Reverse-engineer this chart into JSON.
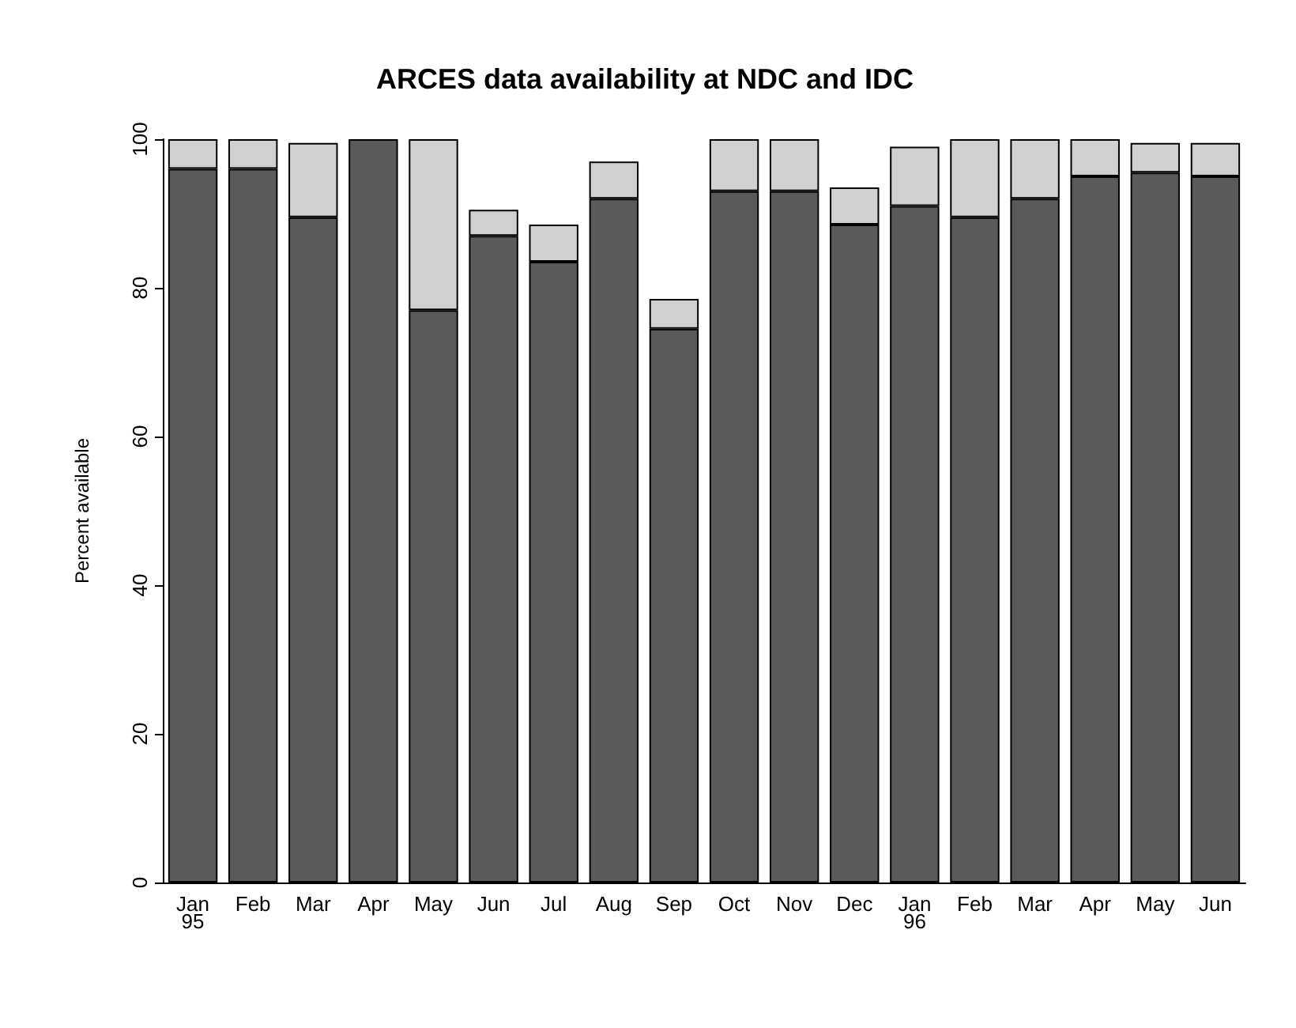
{
  "chart_data": {
    "type": "bar",
    "title": "ARCES data availability at NDC and IDC",
    "ylabel": "Percent available",
    "categories": [
      "Jan\n95",
      "Feb",
      "Mar",
      "Apr",
      "May",
      "Jun",
      "Jul",
      "Aug",
      "Sep",
      "Oct",
      "Nov",
      "Dec",
      "Jan\n96",
      "Feb",
      "Mar",
      "Apr",
      "May",
      "Jun"
    ],
    "stacked": true,
    "series": [
      {
        "color": "#5a5a5a",
        "values": [
          96,
          96,
          89.5,
          100,
          77,
          87,
          83.5,
          92,
          74.5,
          93,
          93,
          88.5,
          91,
          89.5,
          92,
          95,
          95.5,
          95
        ]
      },
      {
        "color": "#d0d0d0",
        "values": [
          4,
          4,
          10,
          0,
          23,
          3.5,
          5,
          5,
          4,
          7,
          7,
          5,
          8,
          10.5,
          8,
          5,
          4,
          4.5
        ]
      }
    ],
    "ylim": [
      0,
      100
    ],
    "yticks": [
      0,
      20,
      40,
      60,
      80,
      100
    ],
    "grid": false
  }
}
